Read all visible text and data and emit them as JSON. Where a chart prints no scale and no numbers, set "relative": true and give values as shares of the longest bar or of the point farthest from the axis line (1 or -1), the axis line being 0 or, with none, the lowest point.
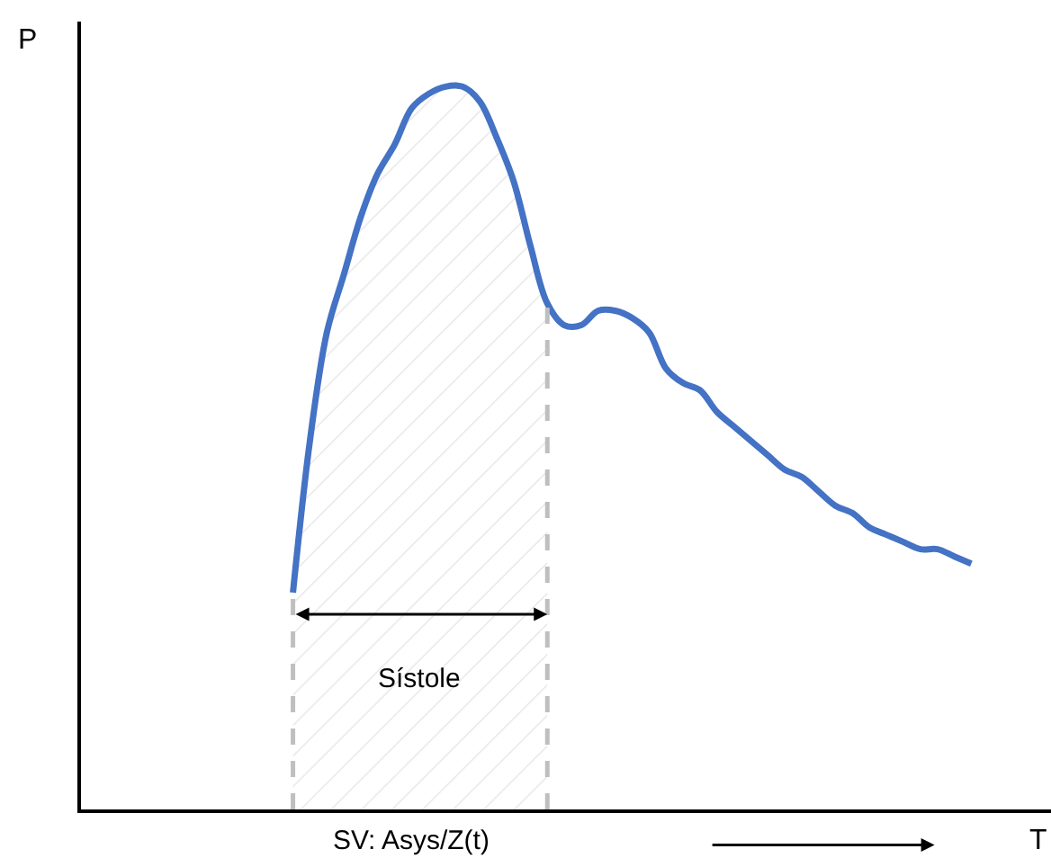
{
  "chart_data": {
    "type": "line",
    "relative": true,
    "categories": [
      null,
      null,
      null,
      null,
      null,
      null,
      null,
      null,
      null,
      null,
      null,
      null,
      null,
      null,
      null,
      null,
      null,
      null,
      null,
      null,
      null,
      null,
      null,
      null,
      null,
      null,
      null,
      null,
      null,
      null,
      null,
      null,
      null,
      null,
      null,
      null,
      null,
      null,
      null,
      null,
      null
    ],
    "series": [
      {
        "type": "area",
        "color": "#bfbfbf",
        "values": [
          0.3,
          0.51,
          0.66,
          0.74,
          0.82,
          0.88,
          0.92,
          0.97,
          0.99,
          1.0,
          1.0,
          0.98,
          0.93,
          0.87,
          0.78,
          0.7,
          null,
          null,
          null,
          null,
          null,
          null,
          null,
          null,
          null,
          null,
          null,
          null,
          null,
          null,
          null,
          null,
          null,
          null,
          null,
          null,
          null,
          null,
          null,
          null,
          null
        ]
      },
      {
        "color": "#4472c4",
        "values": [
          0.3,
          0.51,
          0.66,
          0.74,
          0.82,
          0.88,
          0.92,
          0.97,
          0.99,
          1.0,
          1.0,
          0.98,
          0.93,
          0.87,
          0.78,
          0.7,
          0.67,
          0.67,
          0.69,
          0.69,
          0.68,
          0.66,
          0.61,
          0.59,
          0.58,
          0.55,
          0.53,
          0.51,
          0.49,
          0.47,
          0.46,
          0.44,
          0.42,
          0.41,
          0.39,
          0.38,
          0.37,
          0.36,
          0.36,
          0.35,
          0.34
        ]
      }
    ],
    "annotations": [
      "P",
      "T",
      "SV: Asys/Z(t)",
      "Sístole"
    ],
    "marker": "none",
    "line_style": "solid"
  }
}
